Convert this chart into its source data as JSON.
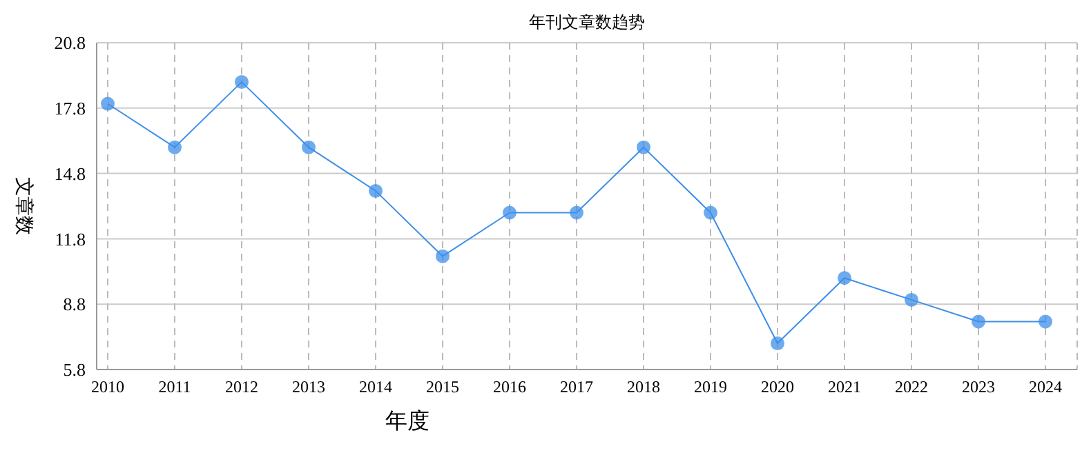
{
  "chart_data": {
    "type": "line",
    "title": "年刊文章数趋势",
    "xlabel": "年度",
    "ylabel": "文章数",
    "categories": [
      "2010",
      "2011",
      "2012",
      "2013",
      "2014",
      "2015",
      "2016",
      "2017",
      "2018",
      "2019",
      "2020",
      "2021",
      "2022",
      "2023",
      "2024"
    ],
    "series": [
      {
        "color": "#3d8fe8",
        "values": [
          18,
          16,
          19,
          16,
          14,
          11,
          13,
          13,
          16,
          13,
          7,
          10,
          9,
          8,
          8
        ]
      }
    ],
    "ylim": [
      5.8,
      20.8
    ],
    "yticks": [
      5.8,
      8.8,
      11.8,
      14.8,
      17.8,
      20.8
    ],
    "grid": true,
    "marker": "circle",
    "line_style": "solid"
  }
}
